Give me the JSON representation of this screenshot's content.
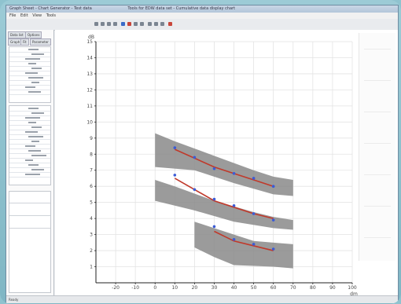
{
  "window": {
    "title": "Graph Sheet - Chart Generator - Test data",
    "title_right": "Tools for EDW data set - Cumulative data display chart"
  },
  "menu": [
    "File",
    "Edit",
    "View",
    "Tools"
  ],
  "toolbar": {
    "icons": [
      "back-icon",
      "forward-icon",
      "first-icon",
      "prev-icon",
      "play-icon",
      "record-icon",
      "next-icon",
      "last-icon",
      "zoom-icon",
      "pan-icon",
      "grid-icon",
      "settings-icon"
    ]
  },
  "left_panel": {
    "tabs": [
      "Data list",
      "Options"
    ],
    "sub_tabs": [
      "Graph",
      "Fit",
      "Parameter"
    ]
  },
  "status_bar": {
    "left": "Ready",
    "middle": "",
    "right": ""
  },
  "chart_data": {
    "type": "line",
    "title": "",
    "xlabel": "dm",
    "ylabel": "dB",
    "xlim": [
      -30,
      100
    ],
    "ylim": [
      0,
      15
    ],
    "x_ticks": [
      -20,
      -10,
      0,
      10,
      20,
      30,
      40,
      50,
      60,
      70,
      80,
      90,
      100
    ],
    "y_ticks": [
      1,
      2,
      3,
      4,
      5,
      6,
      7,
      8,
      9,
      10,
      11,
      12,
      13,
      14,
      15
    ],
    "grid": true,
    "legend": "none",
    "colors": {
      "band": "#8a8a8a",
      "line": "#c0392b",
      "points": "#3b5bd6"
    },
    "series": [
      {
        "band_upper": [
          [
            0,
            9.3
          ],
          [
            10,
            8.8
          ],
          [
            30,
            7.9
          ],
          [
            50,
            7.0
          ],
          [
            60,
            6.6
          ],
          [
            70,
            6.4
          ]
        ],
        "band_lower": [
          [
            0,
            7.2
          ],
          [
            20,
            7.0
          ],
          [
            40,
            6.2
          ],
          [
            60,
            5.5
          ],
          [
            70,
            5.4
          ]
        ],
        "line": [
          [
            10,
            8.3
          ],
          [
            30,
            7.2
          ],
          [
            40,
            6.8
          ],
          [
            50,
            6.4
          ],
          [
            60,
            6.0
          ]
        ],
        "points": [
          [
            10,
            8.4
          ],
          [
            20,
            7.8
          ],
          [
            30,
            7.1
          ],
          [
            40,
            6.8
          ],
          [
            50,
            6.5
          ],
          [
            60,
            6.0
          ]
        ]
      },
      {
        "band_upper": [
          [
            0,
            6.4
          ],
          [
            10,
            6.0
          ],
          [
            30,
            5.1
          ],
          [
            50,
            4.4
          ],
          [
            60,
            4.1
          ],
          [
            70,
            3.9
          ]
        ],
        "band_lower": [
          [
            0,
            5.1
          ],
          [
            20,
            4.5
          ],
          [
            40,
            3.8
          ],
          [
            60,
            3.4
          ],
          [
            70,
            3.3
          ]
        ],
        "line": [
          [
            10,
            6.5
          ],
          [
            30,
            5.1
          ],
          [
            40,
            4.7
          ],
          [
            50,
            4.3
          ],
          [
            60,
            4.0
          ]
        ],
        "points": [
          [
            10,
            6.7
          ],
          [
            20,
            5.8
          ],
          [
            30,
            5.2
          ],
          [
            40,
            4.8
          ],
          [
            50,
            4.3
          ],
          [
            60,
            3.9
          ]
        ]
      },
      {
        "band_upper": [
          [
            20,
            3.8
          ],
          [
            40,
            3.0
          ],
          [
            50,
            2.6
          ],
          [
            60,
            2.5
          ],
          [
            70,
            2.4
          ]
        ],
        "band_lower": [
          [
            20,
            2.2
          ],
          [
            30,
            1.6
          ],
          [
            40,
            1.1
          ],
          [
            60,
            1.0
          ],
          [
            70,
            0.9
          ]
        ],
        "line": [
          [
            30,
            3.2
          ],
          [
            40,
            2.6
          ],
          [
            50,
            2.3
          ],
          [
            60,
            2.0
          ]
        ],
        "points": [
          [
            30,
            3.5
          ],
          [
            40,
            2.7
          ],
          [
            50,
            2.4
          ],
          [
            60,
            2.1
          ]
        ]
      }
    ]
  }
}
